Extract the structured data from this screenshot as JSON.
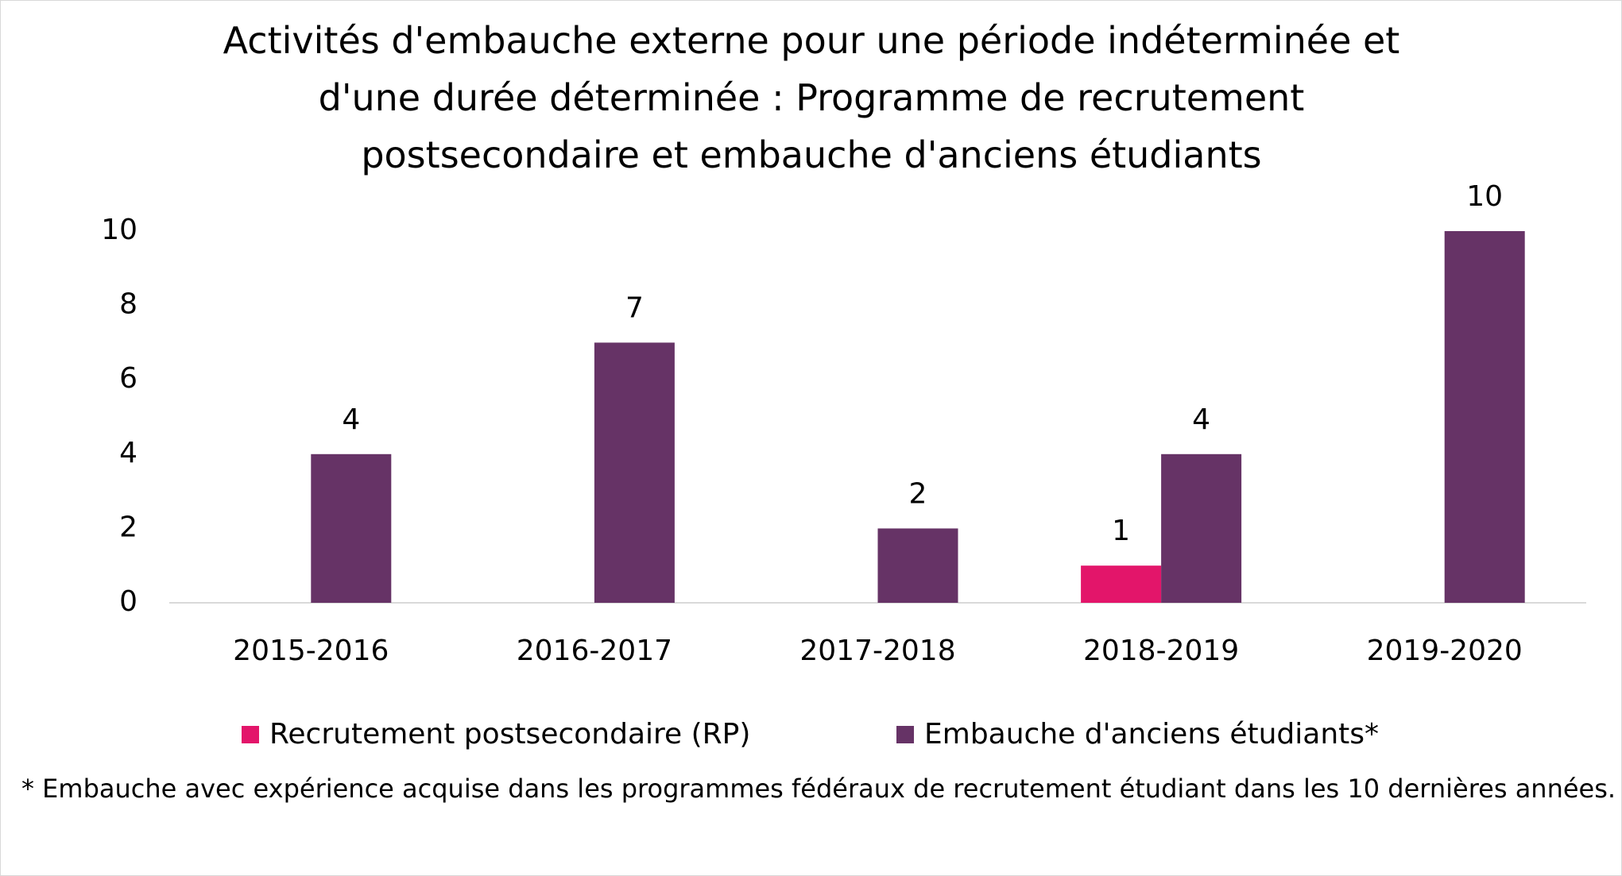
{
  "chart_data": {
    "type": "bar",
    "title": "Activités d'embauche externe pour une période indéterminée et d'une durée déterminée : Programme de recrutement postsecondaire et embauche d'anciens étudiants",
    "categories": [
      "2015-2016",
      "2016-2017",
      "2017-2018",
      "2018-2019",
      "2019-2020"
    ],
    "series": [
      {
        "name": "Recrutement postsecondaire (RP)",
        "color": "#e3156a",
        "values": [
          null,
          null,
          null,
          1,
          null
        ]
      },
      {
        "name": "Embauche d'anciens étudiants*",
        "color": "#663366",
        "values": [
          4,
          7,
          2,
          4,
          10
        ]
      }
    ],
    "ylim": [
      0,
      10
    ],
    "yticks": [
      0,
      2,
      4,
      6,
      8,
      10
    ],
    "grid": false,
    "note": "* Embauche avec expérience acquise dans les programmes fédéraux de recrutement étudiant dans les 10 dernières années."
  }
}
